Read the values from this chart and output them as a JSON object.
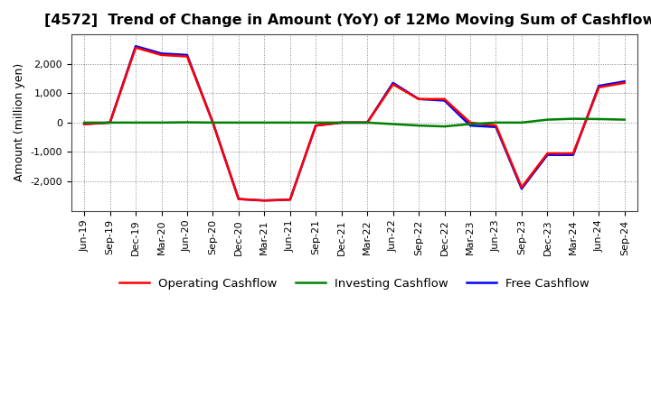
{
  "title": "[4572]  Trend of Change in Amount (YoY) of 12Mo Moving Sum of Cashflows",
  "ylabel": "Amount (million yen)",
  "x_labels": [
    "Jun-19",
    "Sep-19",
    "Dec-19",
    "Mar-20",
    "Jun-20",
    "Sep-20",
    "Dec-20",
    "Mar-21",
    "Jun-21",
    "Sep-21",
    "Dec-21",
    "Mar-22",
    "Jun-22",
    "Sep-22",
    "Dec-22",
    "Mar-23",
    "Jun-23",
    "Sep-23",
    "Dec-23",
    "Mar-24",
    "Jun-24",
    "Sep-24"
  ],
  "operating": [
    -50,
    0,
    2550,
    2300,
    2250,
    0,
    -2600,
    -2650,
    -2620,
    -100,
    0,
    0,
    1300,
    800,
    800,
    0,
    -100,
    -2200,
    -1050,
    -1050,
    1200,
    1350
  ],
  "investing": [
    0,
    0,
    0,
    0,
    10,
    0,
    0,
    0,
    0,
    0,
    0,
    0,
    -50,
    -100,
    -130,
    -50,
    0,
    0,
    100,
    130,
    120,
    100
  ],
  "free": [
    -50,
    0,
    2600,
    2350,
    2300,
    0,
    -2600,
    -2650,
    -2620,
    -100,
    0,
    0,
    1350,
    800,
    750,
    -100,
    -150,
    -2250,
    -1100,
    -1100,
    1250,
    1400
  ],
  "operating_color": "#ff0000",
  "investing_color": "#008000",
  "free_color": "#0000ff",
  "ylim": [
    -3000,
    3000
  ],
  "yticks": [
    -2000,
    -1000,
    0,
    1000,
    2000
  ],
  "background_color": "#ffffff",
  "plot_bg_color": "#ffffff",
  "grid_color": "#888888",
  "title_fontsize": 11.5,
  "ylabel_fontsize": 9,
  "tick_fontsize": 8,
  "legend_fontsize": 9.5,
  "line_width": 1.8
}
